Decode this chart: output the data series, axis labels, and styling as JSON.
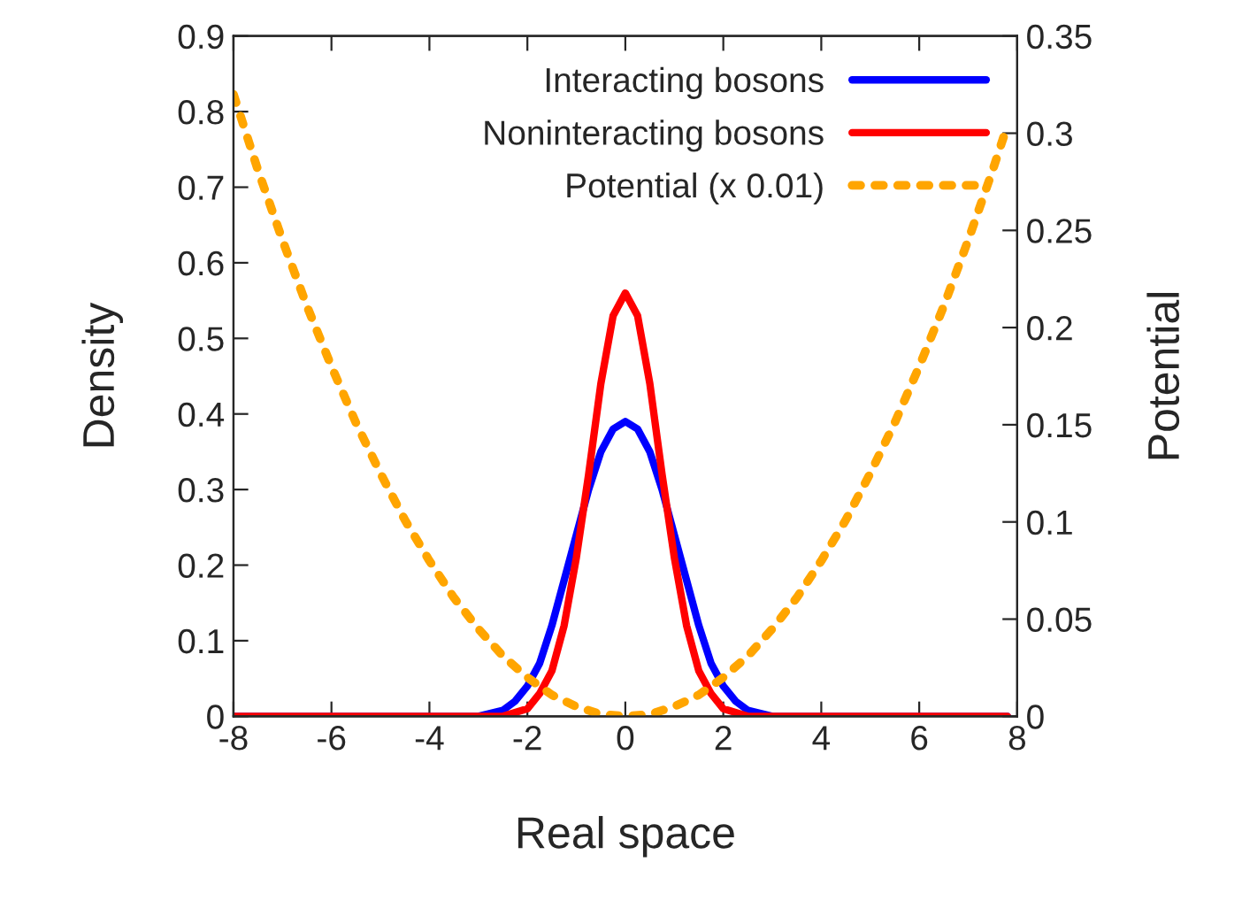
{
  "chart_data": {
    "type": "line",
    "xlabel": "Real space",
    "ylabel": "Density",
    "y2label": "Potential",
    "xlim": [
      -8,
      8
    ],
    "xticks": [
      -8,
      -6,
      -4,
      -2,
      0,
      2,
      4,
      6,
      8
    ],
    "ylim": [
      0,
      0.9
    ],
    "yticks": [
      0,
      0.1,
      0.2,
      0.3,
      0.4,
      0.5,
      0.6,
      0.7,
      0.8,
      0.9
    ],
    "y2lim": [
      0,
      0.35
    ],
    "y2ticks": [
      0,
      0.05,
      0.1,
      0.15,
      0.2,
      0.25,
      0.3,
      0.35
    ],
    "grid": false,
    "legend": "top right",
    "marker": "none",
    "series": [
      {
        "name": "Interacting bosons",
        "color": "#0000ff",
        "line_style": "solid",
        "x": [
          -8,
          -3,
          -2.5,
          -2.25,
          -2,
          -1.75,
          -1.5,
          -1.25,
          -1,
          -0.75,
          -0.5,
          -0.25,
          0,
          0.25,
          0.5,
          0.75,
          1,
          1.25,
          1.5,
          1.75,
          2,
          2.25,
          2.5,
          3,
          7.8
        ],
        "values": [
          0,
          0,
          0.008,
          0.02,
          0.04,
          0.07,
          0.12,
          0.18,
          0.24,
          0.3,
          0.35,
          0.38,
          0.39,
          0.38,
          0.35,
          0.3,
          0.24,
          0.18,
          0.12,
          0.07,
          0.04,
          0.02,
          0.008,
          0,
          0
        ]
      },
      {
        "name": "Noninteracting bosons",
        "color": "#ff0000",
        "line_style": "solid",
        "x": [
          -8,
          -3,
          -2.5,
          -2,
          -1.75,
          -1.5,
          -1.25,
          -1,
          -0.75,
          -0.5,
          -0.25,
          0,
          0.25,
          0.5,
          0.75,
          1,
          1.25,
          1.5,
          1.75,
          2,
          2.5,
          3,
          7.8
        ],
        "values": [
          0,
          0,
          0,
          0.01,
          0.03,
          0.06,
          0.12,
          0.21,
          0.32,
          0.44,
          0.53,
          0.56,
          0.53,
          0.44,
          0.32,
          0.21,
          0.12,
          0.06,
          0.03,
          0.01,
          0,
          0,
          0
        ]
      },
      {
        "name": "Potential (x 0.01)",
        "color": "#ffa500",
        "line_style": "dotted",
        "axis": "y2",
        "x": [
          -8,
          -7.5,
          -7,
          -6.5,
          -6,
          -5.5,
          -5,
          -4.5,
          -4,
          -3.5,
          -3,
          -2.5,
          -2,
          -1.5,
          -1,
          -0.5,
          0,
          0.5,
          1,
          1.5,
          2,
          2.5,
          3,
          3.5,
          4,
          4.5,
          5,
          5.5,
          6,
          6.5,
          7,
          7.5,
          7.8
        ],
        "values": [
          0.32,
          0.281,
          0.245,
          0.211,
          0.18,
          0.151,
          0.125,
          0.101,
          0.08,
          0.061,
          0.045,
          0.031,
          0.02,
          0.011,
          0.005,
          0.001,
          0,
          0.001,
          0.005,
          0.011,
          0.02,
          0.031,
          0.045,
          0.061,
          0.08,
          0.101,
          0.125,
          0.151,
          0.18,
          0.211,
          0.245,
          0.281,
          0.304
        ]
      }
    ]
  }
}
